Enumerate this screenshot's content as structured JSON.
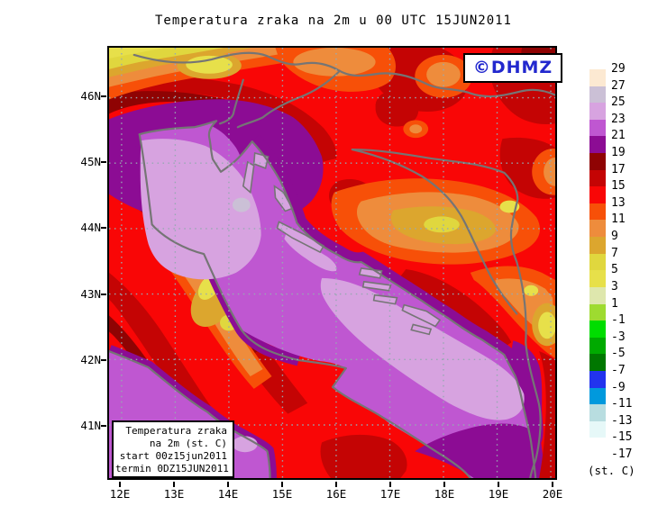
{
  "title": "Temperatura zraka na 2m u 00 UTC 15JUN2011",
  "watermark": {
    "label": "©DHMZ",
    "color": "#2228CE"
  },
  "axes": {
    "x_tick_labels": [
      "12E",
      "13E",
      "14E",
      "15E",
      "16E",
      "17E",
      "18E",
      "19E",
      "20E"
    ],
    "y_tick_labels": [
      "46N",
      "45N",
      "44N",
      "43N",
      "42N",
      "41N"
    ]
  },
  "colorbar": {
    "tick_labels": [
      "29",
      "27",
      "25",
      "23",
      "21",
      "19",
      "17",
      "15",
      "13",
      "11",
      "9",
      "7",
      "5",
      "3",
      "1",
      "-1",
      "-3",
      "-5",
      "-7",
      "-9",
      "-11",
      "-13",
      "-15",
      "-17"
    ],
    "cell_colors": [
      "#FCE9D2",
      "#CBC0D6",
      "#D7A3E0",
      "#BF57D1",
      "#8C0C94",
      "#8F0303",
      "#C40404",
      "#F90606",
      "#F75008",
      "#EE8C3C",
      "#DCA62E",
      "#E0D73E",
      "#E7E04A",
      "#DEE7AD",
      "#9EDB30",
      "#00DD00",
      "#00AA00",
      "#007700",
      "#2233EE",
      "#0099DD",
      "#B8DDE0",
      "#E6F8F8",
      "#FFFFFF"
    ],
    "unit_label": "(st. C)"
  },
  "info_box": {
    "lines": [
      "Temperatura zraka",
      "na 2m (st. C)",
      "start 00z15jun2011",
      "termin 0DZ15JUN2011"
    ]
  },
  "palette": {
    "red": "#F90606",
    "dark_red": "#C40404",
    "darkest_red": "#8F0303",
    "orange_red": "#F75008",
    "orange": "#EE8C3C",
    "goldenrod": "#DCA62E",
    "yellow": "#E0D73E",
    "pale_yellow": "#E7E04A",
    "orchid": "#BF57D1",
    "dark_purple": "#8C0C94",
    "lilac": "#D7A3E0",
    "pale_lilac": "#CBC0D6"
  }
}
